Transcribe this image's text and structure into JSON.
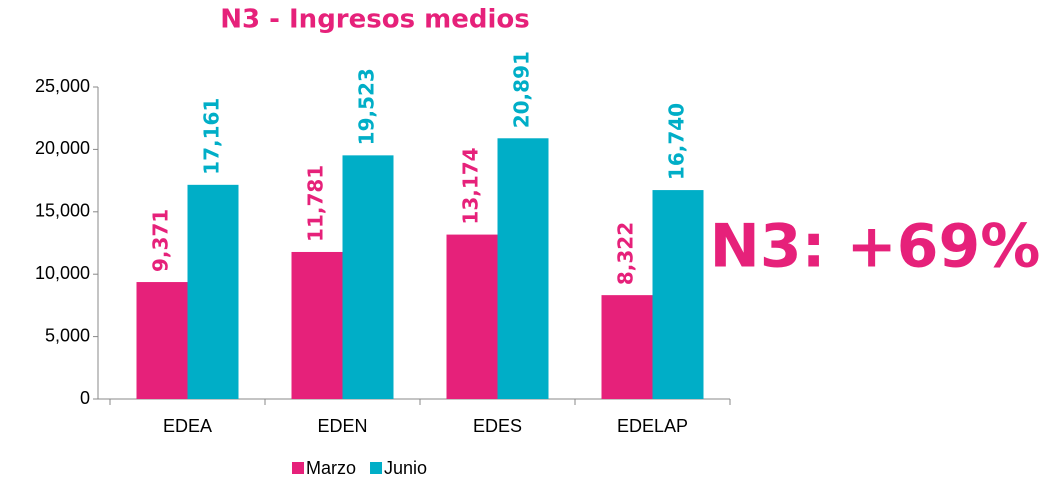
{
  "chart_data": {
    "type": "bar",
    "title": "N3 - Ingresos medios",
    "annotation": "N3: +69%",
    "categories": [
      "EDEA",
      "EDEN",
      "EDES",
      "EDELAP"
    ],
    "series": [
      {
        "name": "Marzo",
        "color": "#e6217a",
        "values": [
          9371,
          11781,
          13174,
          8322
        ],
        "value_labels": [
          "9,371",
          "11,781",
          "13,174",
          "8,322"
        ]
      },
      {
        "name": "Junio",
        "color": "#00aec7",
        "values": [
          17161,
          19523,
          20891,
          16740
        ],
        "value_labels": [
          "17,161",
          "19,523",
          "20,891",
          "16,740"
        ]
      }
    ],
    "ylim": [
      0,
      25000
    ],
    "yticks": [
      0,
      {
        "value": 5000,
        "label": "5,000"
      },
      {
        "value": 10000,
        "label": "10,000"
      },
      {
        "value": 15000,
        "label": "15,000"
      },
      {
        "value": 20000,
        "label": "20,000"
      },
      {
        "value": 25000,
        "label": "25,000"
      }
    ],
    "grid": false,
    "legend": "bottom"
  }
}
